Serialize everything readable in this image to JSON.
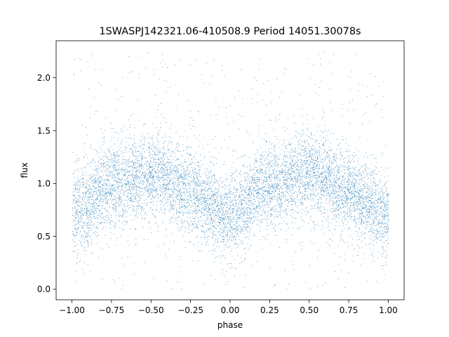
{
  "chart_data": {
    "type": "scatter",
    "title": "1SWASPJ142321.06-410508.9 Period 14051.30078s",
    "xlabel": "phase",
    "ylabel": "flux",
    "xlim": [
      -1.1,
      1.1
    ],
    "ylim": [
      -0.1,
      2.35
    ],
    "x_ticks": [
      -1.0,
      -0.75,
      -0.5,
      -0.25,
      0.0,
      0.25,
      0.5,
      0.75,
      1.0
    ],
    "x_tick_labels": [
      "−1.00",
      "−0.75",
      "−0.50",
      "−0.25",
      "0.00",
      "0.25",
      "0.50",
      "0.75",
      "1.00"
    ],
    "y_ticks": [
      0.0,
      0.5,
      1.0,
      1.5,
      2.0
    ],
    "y_tick_labels": [
      "0.0",
      "0.5",
      "1.0",
      "1.5",
      "2.0"
    ],
    "grid": false,
    "legend": "none",
    "series": [
      {
        "color": "#1f77b4",
        "phase_range": [
          -1.0,
          1.0
        ],
        "trend": {
          "phase": [
            -1.0,
            -0.75,
            -0.5,
            -0.25,
            0.0,
            0.25,
            0.5,
            0.75,
            1.0
          ],
          "flux": [
            0.73,
            1.0,
            1.1,
            0.92,
            0.68,
            1.0,
            1.1,
            0.92,
            0.7
          ]
        },
        "scatter_sd": 0.2,
        "outlier_range": [
          0.0,
          2.25
        ]
      }
    ]
  }
}
